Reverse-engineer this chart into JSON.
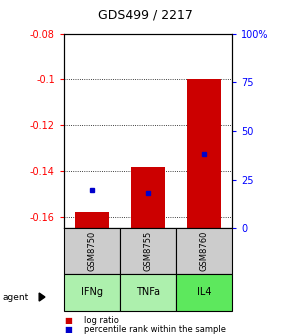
{
  "title": "GDS499 / 2217",
  "samples": [
    "GSM8750",
    "GSM8755",
    "GSM8760"
  ],
  "agents": [
    "IFNg",
    "TNFa",
    "IL4"
  ],
  "log_ratio": [
    -0.158,
    -0.138,
    -0.1
  ],
  "percentile_rank": [
    20.0,
    18.0,
    38.0
  ],
  "ylim_left": [
    -0.165,
    -0.08
  ],
  "ylim_right": [
    0,
    100
  ],
  "bar_bottom": -0.165,
  "bar_color": "#cc0000",
  "dot_color": "#0000cc",
  "agent_bg_color": "#90ee90",
  "sample_bg_color": "#cccccc",
  "title_fontsize": 9,
  "tick_fontsize": 7,
  "sample_fontsize": 6,
  "agent_fontsize": 7,
  "legend_fontsize": 6,
  "yticks_left": [
    -0.16,
    -0.14,
    -0.12,
    -0.1,
    -0.08
  ],
  "yticks_right": [
    0,
    25,
    50,
    75,
    100
  ],
  "legend_log_ratio": "log ratio",
  "legend_percentile": "percentile rank within the sample"
}
